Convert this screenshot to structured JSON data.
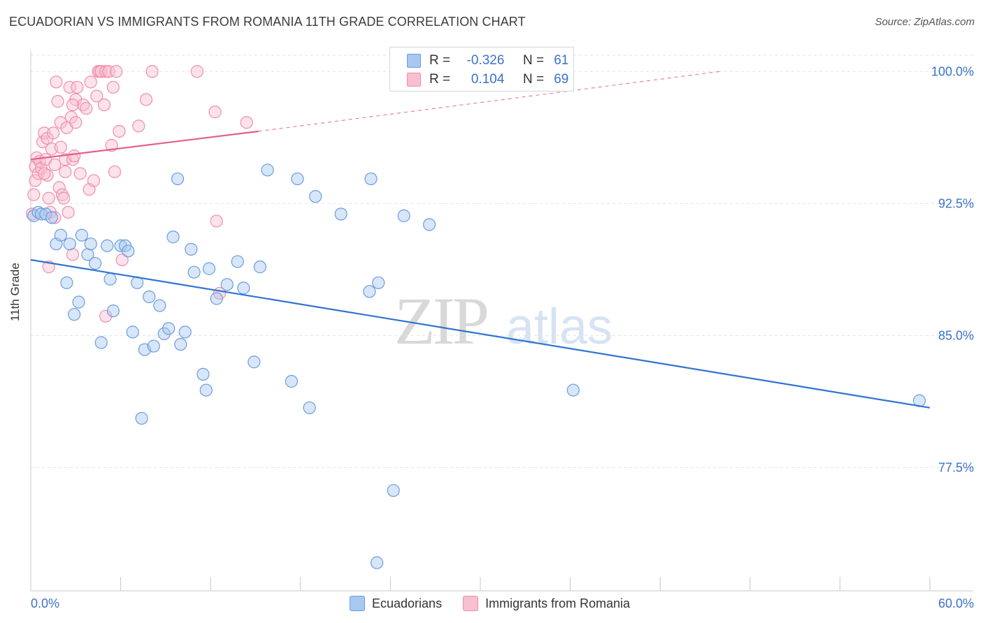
{
  "header": {
    "title": "ECUADORIAN VS IMMIGRANTS FROM ROMANIA 11TH GRADE CORRELATION CHART",
    "source": "Source: ZipAtlas.com"
  },
  "watermark": {
    "zip": "ZIP",
    "atlas": "atlas"
  },
  "legend_top": {
    "r_label": "R =",
    "n_label": "N =",
    "rows": [
      {
        "r": "-0.326",
        "n": "61"
      },
      {
        "r": "0.104",
        "n": "69"
      }
    ]
  },
  "colors": {
    "blue_fill": "#a8c8f0",
    "blue_stroke": "#6a9de0",
    "blue_line": "#2f74d0",
    "pink_fill": "#f8bfd0",
    "pink_stroke": "#ef8fab",
    "pink_line": "#e0608a",
    "tick_text": "#3a72c9",
    "grid": "#e3e3e3"
  },
  "chart_data": {
    "type": "scatter",
    "title": "ECUADORIAN VS IMMIGRANTS FROM ROMANIA 11TH GRADE CORRELATION CHART",
    "xlabel": "",
    "ylabel": "11th Grade",
    "xlim": [
      0,
      60
    ],
    "ylim": [
      70.5,
      101.2
    ],
    "x_tick_labels": [
      "0.0%",
      "60.0%"
    ],
    "y_ticks": [
      77.5,
      85.0,
      92.5,
      100.0
    ],
    "y_tick_labels": [
      "77.5%",
      "85.0%",
      "92.5%",
      "100.0%"
    ],
    "grid": true,
    "legend_position": "bottom-center",
    "series": [
      {
        "name": "Ecuadorians",
        "r": -0.326,
        "n": 61,
        "trend": {
          "x": [
            0,
            60
          ],
          "y": [
            89.3,
            80.9
          ]
        },
        "points": [
          [
            0.2,
            91.8
          ],
          [
            0.5,
            92.0
          ],
          [
            0.7,
            91.9
          ],
          [
            1.0,
            91.9
          ],
          [
            1.4,
            91.7
          ],
          [
            1.7,
            90.2
          ],
          [
            2.0,
            90.7
          ],
          [
            2.4,
            88.0
          ],
          [
            2.6,
            90.2
          ],
          [
            2.9,
            86.2
          ],
          [
            3.2,
            86.9
          ],
          [
            3.4,
            90.7
          ],
          [
            3.8,
            89.6
          ],
          [
            4.0,
            90.2
          ],
          [
            4.3,
            89.1
          ],
          [
            4.7,
            84.6
          ],
          [
            5.1,
            90.1
          ],
          [
            5.3,
            88.2
          ],
          [
            5.5,
            86.4
          ],
          [
            6.0,
            90.1
          ],
          [
            6.3,
            90.1
          ],
          [
            6.5,
            89.8
          ],
          [
            6.8,
            85.2
          ],
          [
            7.1,
            88.0
          ],
          [
            7.4,
            80.3
          ],
          [
            7.6,
            84.2
          ],
          [
            7.9,
            87.2
          ],
          [
            8.2,
            84.4
          ],
          [
            8.6,
            86.7
          ],
          [
            8.9,
            85.1
          ],
          [
            9.2,
            85.4
          ],
          [
            9.5,
            90.6
          ],
          [
            9.8,
            93.9
          ],
          [
            10.0,
            84.5
          ],
          [
            10.3,
            85.2
          ],
          [
            10.7,
            89.9
          ],
          [
            10.9,
            88.6
          ],
          [
            11.5,
            82.8
          ],
          [
            11.7,
            81.9
          ],
          [
            11.9,
            88.8
          ],
          [
            12.4,
            87.1
          ],
          [
            13.1,
            87.9
          ],
          [
            13.8,
            89.2
          ],
          [
            14.2,
            87.7
          ],
          [
            14.9,
            83.5
          ],
          [
            15.3,
            88.9
          ],
          [
            15.8,
            94.4
          ],
          [
            17.4,
            82.4
          ],
          [
            17.8,
            93.9
          ],
          [
            18.6,
            80.9
          ],
          [
            19.0,
            92.9
          ],
          [
            20.7,
            91.9
          ],
          [
            22.6,
            87.5
          ],
          [
            22.7,
            93.9
          ],
          [
            23.2,
            88.0
          ],
          [
            23.1,
            72.1
          ],
          [
            24.2,
            76.2
          ],
          [
            24.9,
            91.8
          ],
          [
            26.6,
            91.3
          ],
          [
            36.2,
            81.9
          ],
          [
            59.3,
            81.3
          ]
        ]
      },
      {
        "name": "Immigrants from Romania",
        "r": 0.104,
        "n": 69,
        "trend": {
          "x": [
            0,
            15.2
          ],
          "y": [
            95.0,
            96.6
          ]
        },
        "trend_extension": {
          "x": [
            15.2,
            46.0
          ],
          "y": [
            96.6,
            100.0
          ]
        },
        "points": [
          [
            0.1,
            91.9
          ],
          [
            0.2,
            93.0
          ],
          [
            0.3,
            94.6
          ],
          [
            0.3,
            93.8
          ],
          [
            0.4,
            95.1
          ],
          [
            0.5,
            94.2
          ],
          [
            0.6,
            94.9
          ],
          [
            0.7,
            94.5
          ],
          [
            0.8,
            96.0
          ],
          [
            0.9,
            96.5
          ],
          [
            1.0,
            95.0
          ],
          [
            1.1,
            94.1
          ],
          [
            1.1,
            96.2
          ],
          [
            1.2,
            92.8
          ],
          [
            1.2,
            88.9
          ],
          [
            1.3,
            92.0
          ],
          [
            1.4,
            95.6
          ],
          [
            1.5,
            96.5
          ],
          [
            1.6,
            91.7
          ],
          [
            1.7,
            99.4
          ],
          [
            1.8,
            98.3
          ],
          [
            1.9,
            93.4
          ],
          [
            2.0,
            95.7
          ],
          [
            2.0,
            97.1
          ],
          [
            2.1,
            93.0
          ],
          [
            2.2,
            92.8
          ],
          [
            2.3,
            94.3
          ],
          [
            2.3,
            95.0
          ],
          [
            2.4,
            96.8
          ],
          [
            2.5,
            92.0
          ],
          [
            2.6,
            99.1
          ],
          [
            2.7,
            97.4
          ],
          [
            2.8,
            95.0
          ],
          [
            2.8,
            89.6
          ],
          [
            2.9,
            95.2
          ],
          [
            3.0,
            98.4
          ],
          [
            3.0,
            97.1
          ],
          [
            3.1,
            99.1
          ],
          [
            3.3,
            94.2
          ],
          [
            3.5,
            98.1
          ],
          [
            3.7,
            97.9
          ],
          [
            3.9,
            93.3
          ],
          [
            4.0,
            99.4
          ],
          [
            4.2,
            93.8
          ],
          [
            4.4,
            98.6
          ],
          [
            4.5,
            100.0
          ],
          [
            4.6,
            100.0
          ],
          [
            4.7,
            100.0
          ],
          [
            4.9,
            98.1
          ],
          [
            5.0,
            100.0
          ],
          [
            5.0,
            86.1
          ],
          [
            5.2,
            100.0
          ],
          [
            5.4,
            95.8
          ],
          [
            5.5,
            99.1
          ],
          [
            5.6,
            94.3
          ],
          [
            5.7,
            100.0
          ],
          [
            5.9,
            96.6
          ],
          [
            6.1,
            89.3
          ],
          [
            7.2,
            96.9
          ],
          [
            7.7,
            98.4
          ],
          [
            8.1,
            100.0
          ],
          [
            11.1,
            100.0
          ],
          [
            12.3,
            97.7
          ],
          [
            12.4,
            91.5
          ],
          [
            12.6,
            87.4
          ],
          [
            14.4,
            97.1
          ],
          [
            2.8,
            98.1
          ],
          [
            1.6,
            94.7
          ],
          [
            0.9,
            94.2
          ]
        ]
      }
    ]
  },
  "legend_bottom": [
    {
      "label": "Ecuadorians"
    },
    {
      "label": "Immigrants from Romania"
    }
  ]
}
